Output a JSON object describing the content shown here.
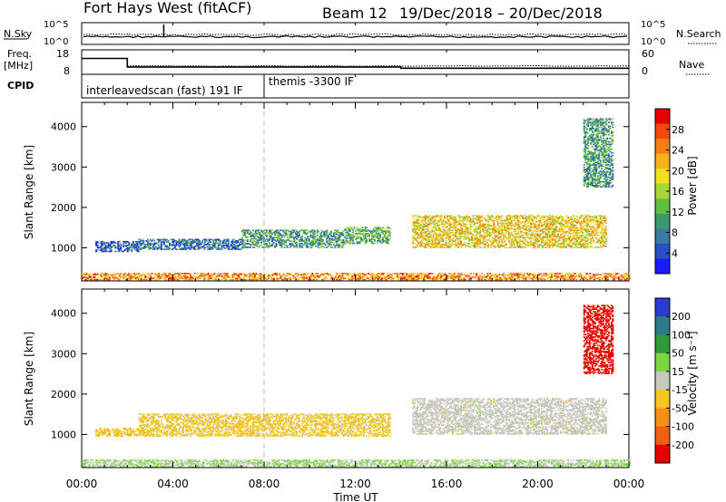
{
  "header": {
    "title": "Fort Hays West (fitACF)",
    "beam": "Beam 12",
    "dates": "19/Dec/2018 – 20/Dec/2018"
  },
  "summary": {
    "nsky_label": "N.Sky",
    "nsearch_label": "N.Search",
    "freq_label_1": "Freq.",
    "freq_label_2": "[MHz]",
    "nave_label": "Nave",
    "cpid_label": "CPID",
    "y_top": "10^5",
    "y_bottom": "10^0",
    "freq_ticks": [
      "18",
      "8"
    ],
    "nave_ticks": [
      "60",
      "0"
    ],
    "cpid_segments": [
      {
        "text": "interleavedscan (fast) 191 IF",
        "start_hour": 0,
        "end_hour": 8
      },
      {
        "text": "themis -3300 IF",
        "start_hour": 8,
        "end_hour": 24
      }
    ],
    "nsky_level": 0.35,
    "nsearch_level": 0.45,
    "freq_series": {
      "x": [
        0,
        2,
        2,
        14,
        14,
        24
      ],
      "y": [
        14.5,
        14.5,
        11,
        11,
        10.5,
        10.5
      ]
    }
  },
  "chart_data": [
    {
      "type": "heatmap",
      "panel": "power",
      "ylabel": "Slant Range [km]",
      "ylim": [
        180,
        4600
      ],
      "xlim_hours": [
        0,
        24
      ],
      "y_ticks": [
        "1000",
        "2000",
        "3000",
        "4000"
      ],
      "colorbar_label": "Power [dB]",
      "colorbar_ticks": [
        "4",
        "8",
        "12",
        "16",
        "20",
        "24",
        "28"
      ],
      "colorbar_colors": [
        "#1a1aff",
        "#2a4ec4",
        "#3d7aa0",
        "#3a9a6e",
        "#5fbf3f",
        "#a7d63a",
        "#f2e020",
        "#f7b21c",
        "#f57e14",
        "#f04a0c",
        "#e60000"
      ],
      "colorbar_range": [
        0,
        32
      ],
      "regions": [
        {
          "t0": 0.6,
          "t1": 2.5,
          "r0": 900,
          "r1": 1150,
          "level": 6
        },
        {
          "t0": 2.5,
          "t1": 7.0,
          "r0": 950,
          "r1": 1200,
          "level": 7
        },
        {
          "t0": 7.0,
          "t1": 11.5,
          "r0": 1000,
          "r1": 1450,
          "level": 10
        },
        {
          "t0": 11.5,
          "t1": 13.5,
          "r0": 1100,
          "r1": 1500,
          "level": 12
        },
        {
          "t0": 14.5,
          "t1": 23.0,
          "r0": 1000,
          "r1": 1800,
          "level": 20
        },
        {
          "t0": 0.0,
          "t1": 24.0,
          "r0": 200,
          "r1": 380,
          "level": 24
        },
        {
          "t0": 22.0,
          "t1": 23.3,
          "r0": 2500,
          "r1": 4200,
          "level": 10
        }
      ]
    },
    {
      "type": "heatmap",
      "panel": "velocity",
      "ylabel": "Slant Range [km]",
      "ylim": [
        180,
        4600
      ],
      "xlim_hours": [
        0,
        24
      ],
      "y_ticks": [
        "1000",
        "2000",
        "3000",
        "4000"
      ],
      "x_ticks": [
        "00:00",
        "04:00",
        "08:00",
        "12:00",
        "16:00",
        "20:00",
        "00:00"
      ],
      "xlabel": "Time UT",
      "colorbar_label": "Velocity [m s⁻¹]",
      "colorbar_ticks": [
        "200",
        "100",
        "50",
        "15",
        "-15",
        "-50",
        "-100",
        "-200"
      ],
      "colorbar_colors": [
        "#2a3ccf",
        "#2f7a8a",
        "#2e9a3a",
        "#7cd640",
        "#c8c8c0",
        "#f5c522",
        "#f5901a",
        "#f06012",
        "#e60000"
      ],
      "colorbar_range": [
        -250,
        250
      ],
      "regions": [
        {
          "t0": 0.6,
          "t1": 2.5,
          "r0": 950,
          "r1": 1150,
          "level": -60
        },
        {
          "t0": 2.5,
          "t1": 13.5,
          "r0": 950,
          "r1": 1500,
          "level": -50
        },
        {
          "t0": 14.5,
          "t1": 23.0,
          "r0": 1000,
          "r1": 1900,
          "level": 0
        },
        {
          "t0": 0.0,
          "t1": 24.0,
          "r0": 200,
          "r1": 380,
          "level": 30
        },
        {
          "t0": 22.0,
          "t1": 23.3,
          "r0": 2500,
          "r1": 4200,
          "level": -220
        }
      ]
    }
  ]
}
